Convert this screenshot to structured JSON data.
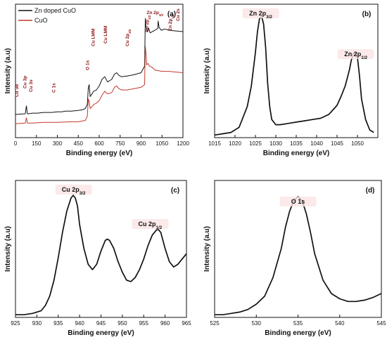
{
  "chart_data": [
    {
      "panel_label": "(a)",
      "type": "line",
      "xlabel": "Binding energy (eV)",
      "ylabel": "Intensity (a.u)",
      "xlim": [
        0,
        1200
      ],
      "xticks": [
        0,
        150,
        300,
        450,
        600,
        750,
        900,
        1050,
        1200
      ],
      "legend_position": "top-left",
      "series": [
        {
          "name": "Zn doped CuO",
          "color": "#111111",
          "x": [
            0,
            70,
            78,
            85,
            95,
            120,
            160,
            200,
            260,
            300,
            330,
            360,
            400,
            450,
            480,
            500,
            515,
            522,
            528,
            535,
            545,
            560,
            580,
            600,
            620,
            640,
            660,
            690,
            710,
            725,
            740,
            760,
            800,
            850,
            900,
            925,
            930,
            935,
            945,
            955,
            965,
            980,
            1000,
            1020,
            1022,
            1030,
            1045,
            1070,
            1100,
            1150,
            1200
          ],
          "y": [
            35,
            36,
            48,
            36,
            36,
            37,
            37,
            38,
            38,
            39,
            39,
            40,
            40,
            41,
            42,
            44,
            50,
            75,
            80,
            62,
            65,
            70,
            72,
            78,
            88,
            92,
            84,
            88,
            96,
            98,
            94,
            92,
            93,
            95,
            98,
            108,
            180,
            168,
            160,
            165,
            158,
            160,
            162,
            165,
            176,
            166,
            162,
            164,
            162,
            161,
            160
          ]
        },
        {
          "name": "CuO",
          "color": "#c0392b",
          "x": [
            0,
            70,
            78,
            85,
            95,
            120,
            200,
            300,
            400,
            450,
            500,
            515,
            522,
            528,
            535,
            545,
            560,
            580,
            600,
            620,
            640,
            660,
            690,
            710,
            725,
            740,
            760,
            800,
            850,
            900,
            925,
            930,
            935,
            940,
            950,
            960,
            980,
            1000,
            1050,
            1100,
            1150,
            1200
          ],
          "y": [
            21,
            22,
            30,
            22,
            22,
            22,
            23,
            23,
            24,
            24,
            26,
            32,
            58,
            55,
            44,
            46,
            50,
            52,
            56,
            64,
            70,
            66,
            68,
            76,
            78,
            74,
            72,
            72,
            74,
            76,
            80,
            138,
            128,
            110,
            112,
            108,
            106,
            102,
            100,
            100,
            99,
            98
          ]
        }
      ],
      "annotations": [
        "Cu 3d",
        "Cu 3p",
        "Cu 3s",
        "C 1s",
        "O 1s",
        "Cu LMM",
        "Cu LMM",
        "Cu 2p3/2",
        "Cu 2p1/2",
        "Zn 2p3/2",
        "Zn 2p1/2",
        "Cu 2s"
      ]
    },
    {
      "panel_label": "(b)",
      "type": "line",
      "xlabel": "Binding energy (eV)",
      "ylabel": "Intensity (a.u)",
      "xlim": [
        1015,
        1055
      ],
      "xticks": [
        1015,
        1020,
        1025,
        1030,
        1035,
        1040,
        1045,
        1050
      ],
      "ylim": [
        0,
        100
      ],
      "series": [
        {
          "x": [
            1015,
            1017,
            1019,
            1021,
            1022,
            1023,
            1024,
            1025,
            1025.5,
            1026,
            1026.5,
            1027,
            1027.5,
            1028,
            1028.5,
            1029,
            1030,
            1031,
            1033,
            1035,
            1037,
            1039,
            1041,
            1043,
            1045,
            1046,
            1047,
            1048,
            1048.5,
            1049,
            1049.5,
            1050,
            1050.5,
            1051,
            1052,
            1053,
            1054
          ],
          "y": [
            2,
            3,
            4,
            8,
            16,
            24,
            40,
            66,
            82,
            92,
            94,
            88,
            70,
            42,
            24,
            14,
            10,
            10,
            11,
            12,
            13,
            14,
            15,
            18,
            25,
            32,
            40,
            52,
            60,
            65,
            66,
            62,
            48,
            30,
            14,
            6,
            4
          ]
        }
      ],
      "annotations": [
        "Zn 2p3/2",
        "Zn 2p1/2"
      ]
    },
    {
      "panel_label": "(c)",
      "type": "line",
      "xlabel": "Binding energy (eV)",
      "ylabel": "Intensity (a.u)",
      "xlim": [
        925,
        965
      ],
      "xticks": [
        925,
        930,
        935,
        940,
        945,
        950,
        955,
        960,
        965
      ],
      "ylim": [
        0,
        100
      ],
      "series": [
        {
          "x": [
            925,
            927,
            929,
            931,
            932,
            933,
            934,
            935,
            936,
            937,
            938,
            938.5,
            939,
            939.5,
            940,
            941,
            942,
            943,
            944,
            945,
            946,
            946.5,
            947,
            948,
            949,
            950,
            951,
            952,
            953,
            954,
            955,
            956,
            957,
            958,
            958.5,
            959,
            960,
            961,
            962,
            963,
            964,
            965
          ],
          "y": [
            2,
            2,
            3,
            5,
            9,
            16,
            28,
            45,
            64,
            80,
            90,
            92,
            90,
            84,
            70,
            52,
            40,
            36,
            40,
            50,
            58,
            59,
            58,
            52,
            42,
            34,
            28,
            27,
            30,
            36,
            44,
            54,
            62,
            66,
            66,
            64,
            52,
            42,
            38,
            40,
            44,
            48
          ]
        }
      ],
      "annotations": [
        "Cu 2p3/2",
        "Cu 2p1/2"
      ]
    },
    {
      "panel_label": "(d)",
      "type": "line",
      "xlabel": "Binding energy (eV)",
      "ylabel": "Intensity (a.u)",
      "xlim": [
        525,
        545
      ],
      "xticks": [
        525,
        530,
        535,
        540,
        545
      ],
      "ylim": [
        0,
        100
      ],
      "series": [
        {
          "x": [
            525,
            526,
            527,
            528,
            529,
            530,
            531,
            532,
            533,
            533.5,
            534,
            534.5,
            535,
            535.5,
            536,
            536.5,
            537,
            538,
            539,
            540,
            541,
            542,
            543,
            544,
            545
          ],
          "y": [
            2,
            2,
            3,
            4,
            6,
            10,
            16,
            30,
            52,
            68,
            80,
            88,
            91,
            88,
            78,
            64,
            48,
            28,
            18,
            14,
            12,
            12,
            13,
            15,
            18
          ]
        }
      ],
      "annotations": [
        "O 1s"
      ]
    }
  ]
}
